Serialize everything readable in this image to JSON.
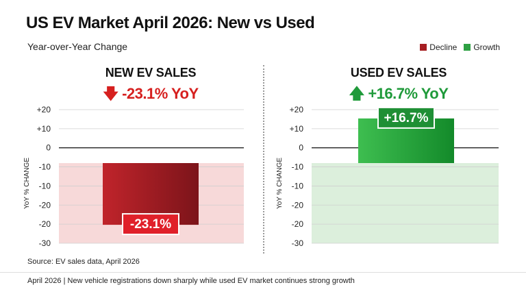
{
  "header": {
    "title": "US EV Market April 2026: New vs Used",
    "subtitle": "Year-over-Year Change"
  },
  "legend": [
    {
      "label": "Decline",
      "color": "#a61e22"
    },
    {
      "label": "Growth",
      "color": "#2ea043"
    }
  ],
  "panels": [
    {
      "title": "NEW EV SALES",
      "arrow": "🡇",
      "change_text": "-23.1% YoY",
      "color": "#d6201f"
    },
    {
      "title": "USED EV SALES",
      "arrow": "🡅",
      "change_text": "+16.7% YoY",
      "color": "#1f9a3a"
    }
  ],
  "chart_data": [
    {
      "type": "bar",
      "categories": [
        "NEW EV SALES"
      ],
      "values": [
        -23.1
      ],
      "data_labels": [
        "-23.1%"
      ],
      "ylabel": "YoY % CHANGE",
      "ylim": [
        -30,
        20
      ],
      "yticks": [
        "+20",
        "+10",
        "0",
        "-10",
        "-10",
        "-20",
        "-20",
        "-30"
      ],
      "grid": true,
      "background_color": "#f7d9d9",
      "bar_color": "#b5212a"
    },
    {
      "type": "bar",
      "categories": [
        "USED EV SALES"
      ],
      "values": [
        16.7
      ],
      "data_labels": [
        "+16.7%"
      ],
      "ylabel": "YoY % CHANGE",
      "ylim": [
        -30,
        20
      ],
      "yticks": [
        "+20",
        "+10",
        "0",
        "-10",
        "-10",
        "-20",
        "-20",
        "-30"
      ],
      "grid": true,
      "background_color": "#dcefdc",
      "bar_color": "#2fa845"
    }
  ],
  "source": "Source: EV sales data, April 2026",
  "footer": "April 2026 | New vehicle registrations down sharply while used EV market continues strong growth"
}
